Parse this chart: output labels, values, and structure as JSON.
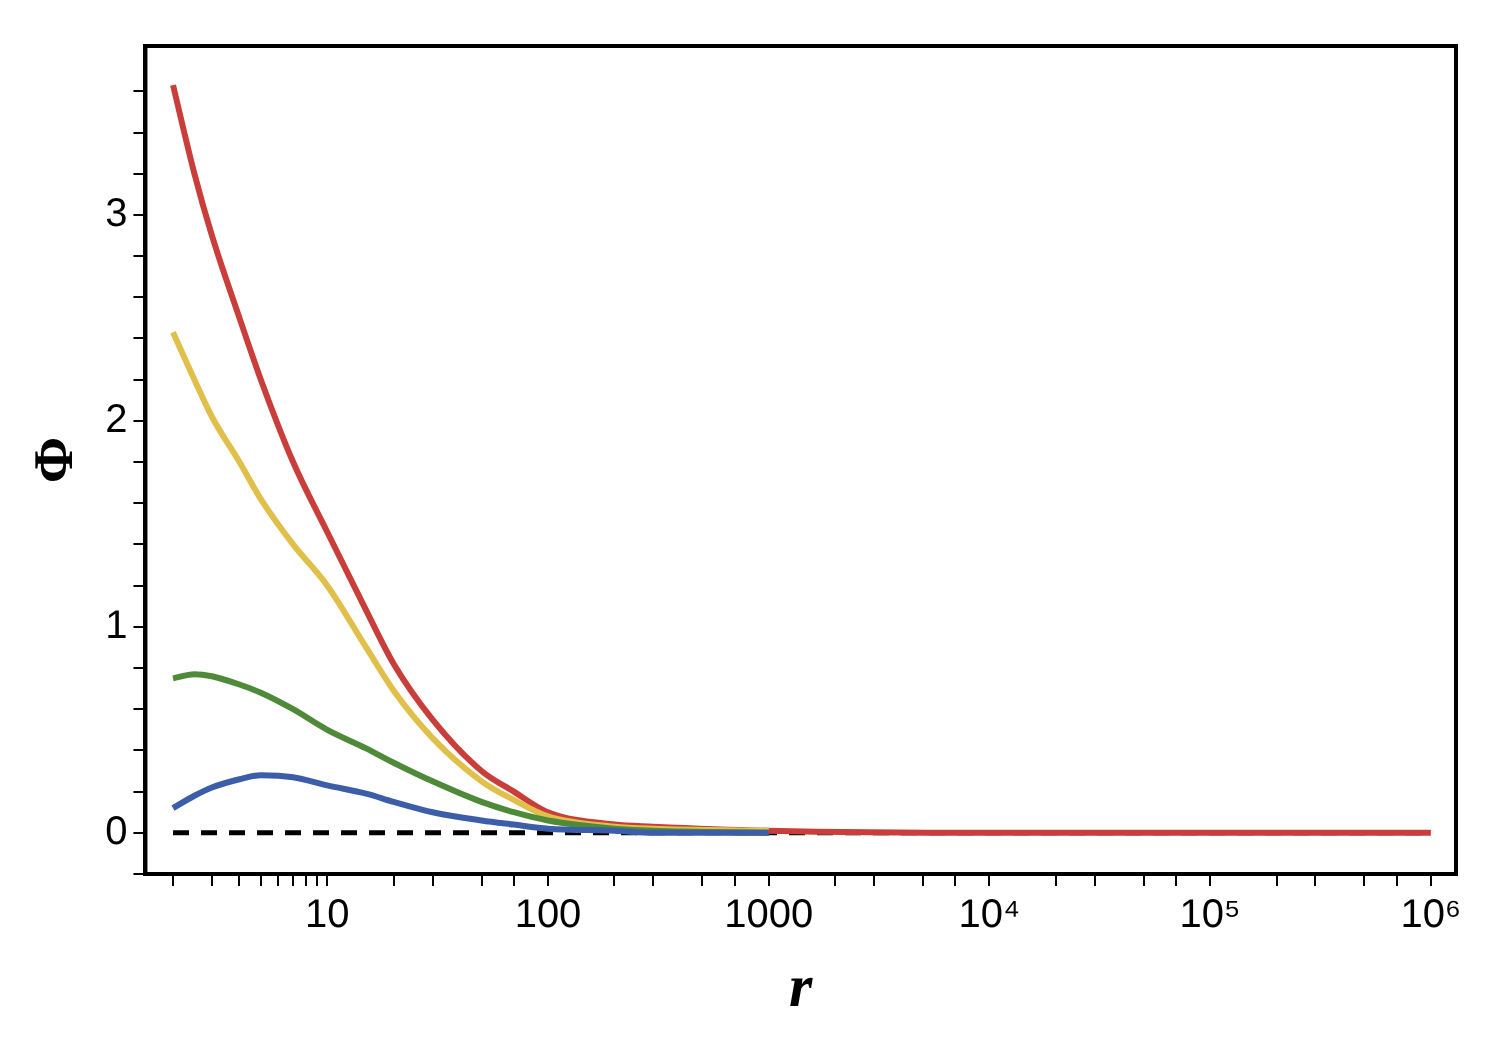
{
  "chart_data": {
    "type": "line",
    "xlabel": "r",
    "ylabel": "Φ",
    "log": "x",
    "grid": false,
    "legend": false,
    "marker": "none",
    "line_style": "solid",
    "xlim": [
      1.5,
      1300000
    ],
    "ylim": [
      -0.2,
      3.82
    ],
    "xticks": [
      {
        "value": 2,
        "label": null
      },
      {
        "value": 3,
        "label": null
      },
      {
        "value": 4,
        "label": null
      },
      {
        "value": 5,
        "label": null
      },
      {
        "value": 6,
        "label": null
      },
      {
        "value": 7,
        "label": null
      },
      {
        "value": 8,
        "label": null
      },
      {
        "value": 9,
        "label": null
      },
      10,
      {
        "value": 20,
        "label": null
      },
      {
        "value": 30,
        "label": null
      },
      {
        "value": 50,
        "label": null
      },
      {
        "value": 70,
        "label": null
      },
      100,
      {
        "value": 200,
        "label": null
      },
      {
        "value": 300,
        "label": null
      },
      {
        "value": 500,
        "label": null
      },
      {
        "value": 700,
        "label": null
      },
      1000,
      {
        "value": 2000,
        "label": null
      },
      {
        "value": 3000,
        "label": null
      },
      {
        "value": 5000,
        "label": null
      },
      {
        "value": 7000,
        "label": null
      },
      {
        "value": 10000,
        "label": "10⁴"
      },
      {
        "value": 20000,
        "label": null
      },
      {
        "value": 30000,
        "label": null
      },
      {
        "value": 50000,
        "label": null
      },
      {
        "value": 70000,
        "label": null
      },
      {
        "value": 100000,
        "label": "10⁵"
      },
      {
        "value": 200000,
        "label": null
      },
      {
        "value": 300000,
        "label": null
      },
      {
        "value": 500000,
        "label": null
      },
      {
        "value": 700000,
        "label": null
      },
      {
        "value": 1000000,
        "label": "10⁶"
      }
    ],
    "yticks": [
      {
        "value": -0.2,
        "label": null
      },
      0,
      {
        "value": 0.2,
        "label": null
      },
      {
        "value": 0.4,
        "label": null
      },
      {
        "value": 0.6,
        "label": null
      },
      {
        "value": 0.8,
        "label": null
      },
      1,
      {
        "value": 1.2,
        "label": null
      },
      {
        "value": 1.4,
        "label": null
      },
      {
        "value": 1.6,
        "label": null
      },
      {
        "value": 1.8,
        "label": null
      },
      2,
      {
        "value": 2.2,
        "label": null
      },
      {
        "value": 2.4,
        "label": null
      },
      {
        "value": 2.6,
        "label": null
      },
      {
        "value": 2.8,
        "label": null
      },
      3,
      {
        "value": 3.2,
        "label": null
      },
      {
        "value": 3.4,
        "label": null
      },
      {
        "value": 3.6,
        "label": null
      }
    ],
    "x": [
      2,
      2.5,
      3,
      4,
      5,
      7,
      10,
      15,
      20,
      30,
      50,
      70,
      100,
      200,
      300,
      1000,
      10000,
      100000,
      1000000
    ],
    "series": [
      {
        "color": "#3c5ea8",
        "values": [
          0.12,
          0.18,
          0.22,
          0.26,
          0.28,
          0.27,
          0.23,
          0.19,
          0.15,
          0.1,
          0.06,
          0.04,
          0.02,
          0.01,
          0,
          0,
          null,
          null,
          null
        ]
      },
      {
        "color": "#4f8a3a",
        "values": [
          0.75,
          0.77,
          0.76,
          0.72,
          0.68,
          0.6,
          0.5,
          0.41,
          0.34,
          0.25,
          0.15,
          0.1,
          0.06,
          0.02,
          0.01,
          0,
          null,
          null,
          null
        ]
      },
      {
        "color": "#e0c04a",
        "values": [
          2.43,
          2.2,
          2.02,
          1.8,
          1.62,
          1.4,
          1.2,
          0.9,
          0.69,
          0.46,
          0.25,
          0.16,
          0.08,
          0.03,
          0.02,
          0.01,
          null,
          null,
          null
        ]
      },
      {
        "color": "#c93e3a",
        "values": [
          3.63,
          3.2,
          2.9,
          2.5,
          2.2,
          1.8,
          1.46,
          1.08,
          0.82,
          0.55,
          0.3,
          0.2,
          0.1,
          0.04,
          0.03,
          0.01,
          0,
          0,
          0
        ]
      }
    ],
    "ref_lines": [
      {
        "axis": "y",
        "value": 0,
        "color": "#000000",
        "line_style": "dashed"
      }
    ]
  }
}
